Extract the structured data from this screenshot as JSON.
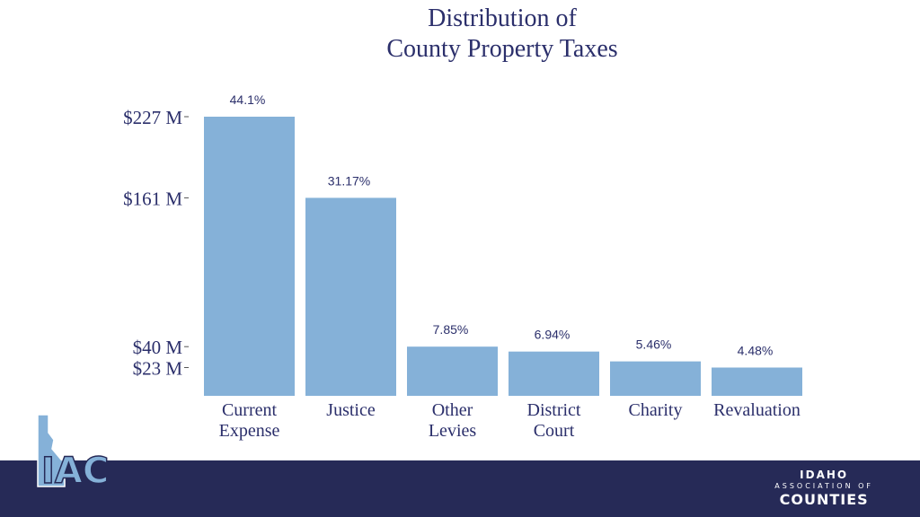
{
  "chart_data": {
    "type": "bar",
    "title": "Distribution of County Property Taxes",
    "title_lines": [
      "Distribution of",
      "County Property Taxes"
    ],
    "categories": [
      "Current Expense",
      "Justice",
      "Other Levies",
      "District Court",
      "Charity",
      "Revaluation"
    ],
    "category_label_lines": [
      [
        "Current",
        "Expense"
      ],
      [
        "Justice"
      ],
      [
        "Other",
        "Levies"
      ],
      [
        "District",
        "Court"
      ],
      [
        "Charity"
      ],
      [
        "Revaluation"
      ]
    ],
    "values_musd": [
      227,
      161,
      40,
      36,
      28,
      23
    ],
    "data_labels": [
      "44.1%",
      "31.17%",
      "7.85%",
      "6.94%",
      "5.46%",
      "4.48%"
    ],
    "y_ticks": [
      {
        "value": 227,
        "label": "$227 M"
      },
      {
        "value": 161,
        "label": "$161 M"
      },
      {
        "value": 40,
        "label": "$40 M"
      },
      {
        "value": 23,
        "label": "$23 M"
      }
    ],
    "ylim": [
      0,
      227
    ],
    "grid": false,
    "bar_color": "#85b1d8",
    "axis_text_color": "#2b2f6b"
  },
  "branding": {
    "logo_text": "IAC",
    "org_line1": "IDAHO",
    "org_line2": "ASSOCIATION OF",
    "org_line3": "COUNTIES",
    "footer_color": "#262a57"
  }
}
